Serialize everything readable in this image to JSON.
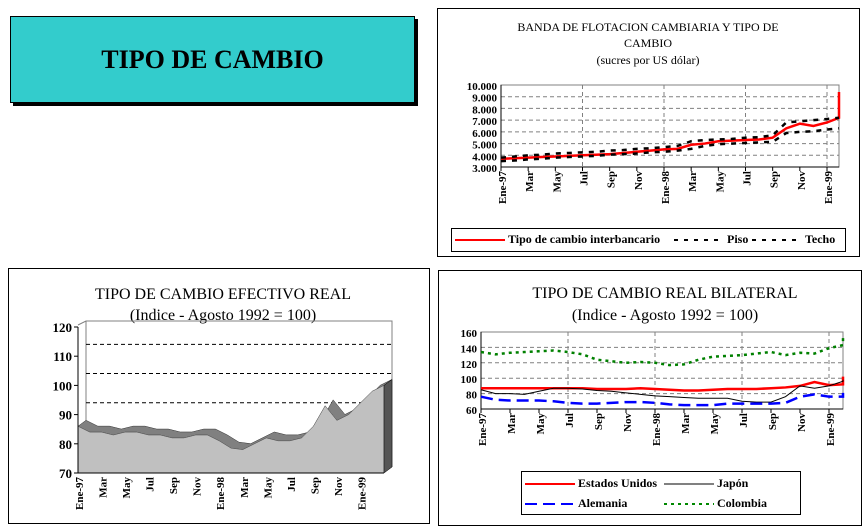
{
  "page_title": "TIPO DE CAMBIO",
  "chart_data": [
    {
      "type": "line",
      "title": "BANDA DE FLOTACION CAMBIARIA Y TIPO DE",
      "title2": "CAMBIO",
      "subtitle": "(sucres por US dólar)",
      "ylim": [
        3000,
        10000
      ],
      "yticks": [
        "3.000",
        "4.000",
        "5.000",
        "6.000",
        "7.000",
        "8.000",
        "9.000",
        "10.000"
      ],
      "ytick_values": [
        3000,
        4000,
        5000,
        6000,
        7000,
        8000,
        9000,
        10000
      ],
      "xlabels": [
        "Ene-97",
        "Mar",
        "May",
        "Jul",
        "Sep",
        "Nov",
        "Ene-98",
        "Mar",
        "May",
        "Jul",
        "Sep",
        "Nov",
        "Ene-99"
      ],
      "grid": true,
      "series": [
        {
          "name": "Tipo de cambio interbancario",
          "color": "#FF0000",
          "style": "solid",
          "values": [
            3700,
            3750,
            3800,
            3850,
            3900,
            3950,
            4000,
            4050,
            4100,
            4200,
            4300,
            4400,
            4500,
            4550,
            4900,
            5000,
            5200,
            5250,
            5300,
            5350,
            5500,
            6300,
            6700,
            6500,
            6800,
            7200,
            9400
          ]
        },
        {
          "name": "Piso",
          "color": "#000000",
          "style": "dash",
          "values": [
            3500,
            3550,
            3650,
            3700,
            3800,
            3850,
            3900,
            3950,
            4050,
            4100,
            4150,
            4250,
            4300,
            4400,
            4550,
            4800,
            4950,
            5000,
            5050,
            5100,
            5150,
            5900,
            6000,
            6050,
            6200,
            6300,
            null
          ]
        },
        {
          "name": "Techo",
          "color": "#000000",
          "style": "dash",
          "values": [
            3800,
            3900,
            4000,
            4050,
            4150,
            4200,
            4250,
            4300,
            4400,
            4450,
            4550,
            4600,
            4700,
            4800,
            5200,
            5300,
            5350,
            5400,
            5500,
            5550,
            5700,
            6800,
            6900,
            7000,
            7100,
            7200,
            null
          ]
        }
      ],
      "legend": "bottom"
    },
    {
      "type": "area",
      "title": "TIPO DE CAMBIO EFECTIVO REAL",
      "subtitle": "(Indice - Agosto 1992 = 100)",
      "ylim": [
        70,
        120
      ],
      "yticks": [
        "70",
        "80",
        "90",
        "100",
        "110",
        "120"
      ],
      "ytick_values": [
        70,
        80,
        90,
        100,
        110,
        120
      ],
      "xlabels": [
        "Ene-97",
        "Mar",
        "May",
        "Jul",
        "Sep",
        "Nov",
        "Ene-98",
        "Mar",
        "May",
        "Jul",
        "Sep",
        "Nov",
        "Ene-99"
      ],
      "values": [
        86,
        84,
        84,
        83,
        84,
        84,
        83,
        83,
        82,
        82,
        83,
        83,
        81,
        78.5,
        78,
        80,
        82,
        81,
        81,
        82,
        86,
        93,
        88,
        90,
        94,
        98,
        100
      ]
    },
    {
      "type": "line",
      "title": "TIPO DE CAMBIO REAL BILATERAL",
      "subtitle": "(Indice - Agosto 1992 = 100)",
      "ylim": [
        60,
        160
      ],
      "yticks": [
        "60",
        "80",
        "100",
        "120",
        "140",
        "160"
      ],
      "ytick_values": [
        60,
        80,
        100,
        120,
        140,
        160
      ],
      "xlabels": [
        "Ene-97",
        "Mar",
        "May",
        "Jul",
        "Sep",
        "Nov",
        "Ene-98",
        "Mar",
        "May",
        "Jul",
        "Sep",
        "Nov",
        "Ene-99"
      ],
      "grid": true,
      "series": [
        {
          "name": "Estados Unidos",
          "color": "#FF0000",
          "style": "solid",
          "values": [
            87,
            87,
            87,
            87,
            87,
            87,
            87,
            87,
            86,
            86,
            86,
            87,
            86,
            85,
            84,
            84,
            85,
            86,
            86,
            86,
            87,
            88,
            90,
            95,
            91,
            92,
            97,
            102
          ]
        },
        {
          "name": "Japón",
          "color": "#000000",
          "style": "thin",
          "values": [
            85,
            80,
            80,
            79,
            83,
            87,
            87,
            86,
            84,
            83,
            81,
            79,
            77,
            76,
            75,
            74,
            74,
            74,
            70,
            69,
            69,
            76,
            90,
            87,
            90,
            96,
            98,
            98
          ]
        },
        {
          "name": "Alemania",
          "color": "#0000FF",
          "style": "longdash",
          "values": [
            76,
            72,
            71,
            71,
            71,
            70,
            68,
            67,
            67,
            68,
            69,
            69,
            68,
            66,
            65,
            65,
            65,
            67,
            67,
            67,
            67,
            68,
            76,
            79,
            76,
            76,
            78,
            80,
            81
          ]
        },
        {
          "name": "Colombia",
          "color": "#008000",
          "style": "dot",
          "values": [
            134,
            131,
            133,
            134,
            135,
            136,
            134,
            131,
            124,
            122,
            120,
            121,
            120,
            117,
            118,
            124,
            128,
            129,
            130,
            132,
            134,
            130,
            133,
            132,
            139,
            143,
            144,
            155
          ]
        }
      ],
      "legend": "bottom"
    }
  ]
}
